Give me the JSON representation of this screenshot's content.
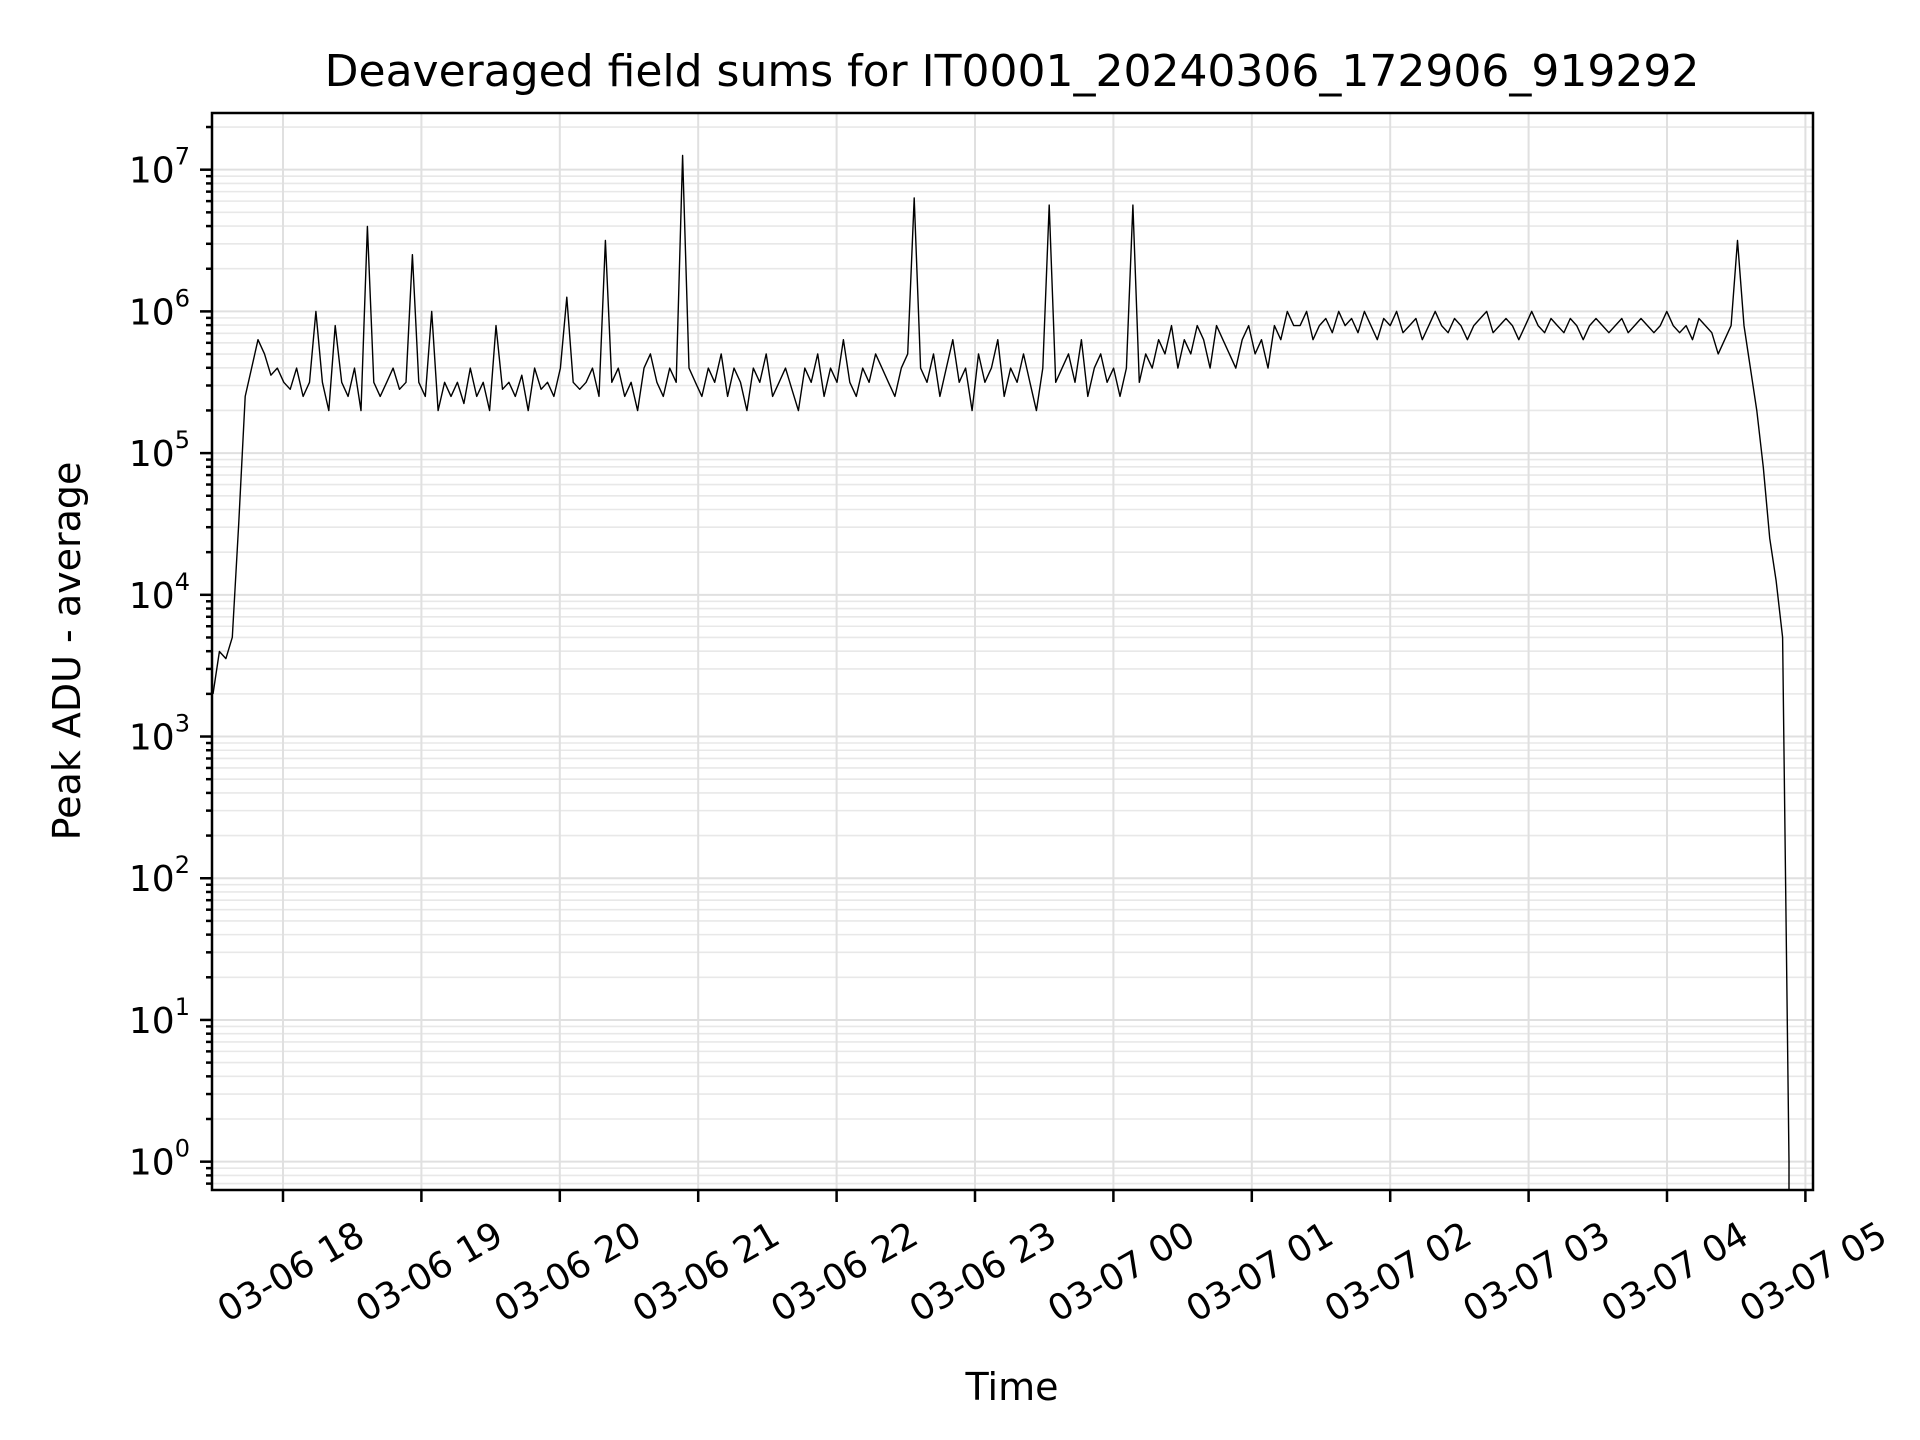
{
  "chart_data": {
    "type": "line",
    "title": "Deaveraged field sums for IT0001_20240306_172906_919292",
    "xlabel": "Time",
    "ylabel": "Peak ADU - average",
    "yscale": "log",
    "ylim_exponent": [
      -0.2,
      7.4
    ],
    "xlim_hours_label_range": [
      "03-06 17:29",
      "03-07 05:01"
    ],
    "grid": true,
    "x_tick_labels": [
      "03-06 18",
      "03-06 19",
      "03-06 20",
      "03-06 21",
      "03-06 22",
      "03-06 23",
      "03-07 00",
      "03-07 01",
      "03-07 02",
      "03-07 03",
      "03-07 04",
      "03-07 05"
    ],
    "y_tick_exponents": [
      0,
      1,
      2,
      3,
      4,
      5,
      6,
      7
    ],
    "y_tick_base": "10",
    "series": [
      {
        "color": "#000000",
        "x_start": "03-06 17:29",
        "x_end": "03-07 04:55",
        "values_log10": [
          3.3,
          3.6,
          3.55,
          3.7,
          4.5,
          5.4,
          5.6,
          5.8,
          5.7,
          5.55,
          5.6,
          5.5,
          5.45,
          5.6,
          5.4,
          5.5,
          6.0,
          5.5,
          5.3,
          5.9,
          5.5,
          5.4,
          5.6,
          5.3,
          6.6,
          5.5,
          5.4,
          5.5,
          5.6,
          5.45,
          5.5,
          6.4,
          5.5,
          5.4,
          6.0,
          5.3,
          5.5,
          5.4,
          5.5,
          5.35,
          5.6,
          5.4,
          5.5,
          5.3,
          5.9,
          5.45,
          5.5,
          5.4,
          5.55,
          5.3,
          5.6,
          5.45,
          5.5,
          5.4,
          5.6,
          6.1,
          5.5,
          5.45,
          5.5,
          5.6,
          5.4,
          6.5,
          5.5,
          5.6,
          5.4,
          5.5,
          5.3,
          5.6,
          5.7,
          5.5,
          5.4,
          5.6,
          5.5,
          7.1,
          5.6,
          5.5,
          5.4,
          5.6,
          5.5,
          5.7,
          5.4,
          5.6,
          5.5,
          5.3,
          5.6,
          5.5,
          5.7,
          5.4,
          5.5,
          5.6,
          5.45,
          5.3,
          5.6,
          5.5,
          5.7,
          5.4,
          5.6,
          5.5,
          5.8,
          5.5,
          5.4,
          5.6,
          5.5,
          5.7,
          5.6,
          5.5,
          5.4,
          5.6,
          5.7,
          6.8,
          5.6,
          5.5,
          5.7,
          5.4,
          5.6,
          5.8,
          5.5,
          5.6,
          5.3,
          5.7,
          5.5,
          5.6,
          5.8,
          5.4,
          5.6,
          5.5,
          5.7,
          5.5,
          5.3,
          5.6,
          6.75,
          5.5,
          5.6,
          5.7,
          5.5,
          5.8,
          5.4,
          5.6,
          5.7,
          5.5,
          5.6,
          5.4,
          5.6,
          6.75,
          5.5,
          5.7,
          5.6,
          5.8,
          5.7,
          5.9,
          5.6,
          5.8,
          5.7,
          5.9,
          5.8,
          5.6,
          5.9,
          5.8,
          5.7,
          5.6,
          5.8,
          5.9,
          5.7,
          5.8,
          5.6,
          5.9,
          5.8,
          6.0,
          5.9,
          5.9,
          6.0,
          5.8,
          5.9,
          5.95,
          5.85,
          6.0,
          5.9,
          5.95,
          5.85,
          6.0,
          5.9,
          5.8,
          5.95,
          5.9,
          6.0,
          5.85,
          5.9,
          5.95,
          5.8,
          5.9,
          6.0,
          5.9,
          5.85,
          5.95,
          5.9,
          5.8,
          5.9,
          5.95,
          6.0,
          5.85,
          5.9,
          5.95,
          5.9,
          5.8,
          5.9,
          6.0,
          5.9,
          5.85,
          5.95,
          5.9,
          5.85,
          5.95,
          5.9,
          5.8,
          5.9,
          5.95,
          5.9,
          5.85,
          5.9,
          5.95,
          5.85,
          5.9,
          5.95,
          5.9,
          5.85,
          5.9,
          6.0,
          5.9,
          5.85,
          5.9,
          5.8,
          5.95,
          5.9,
          5.85,
          5.7,
          5.8,
          5.9,
          6.5,
          5.9,
          5.6,
          5.3,
          4.9,
          4.4,
          4.1,
          3.7,
          0.0
        ]
      }
    ]
  }
}
